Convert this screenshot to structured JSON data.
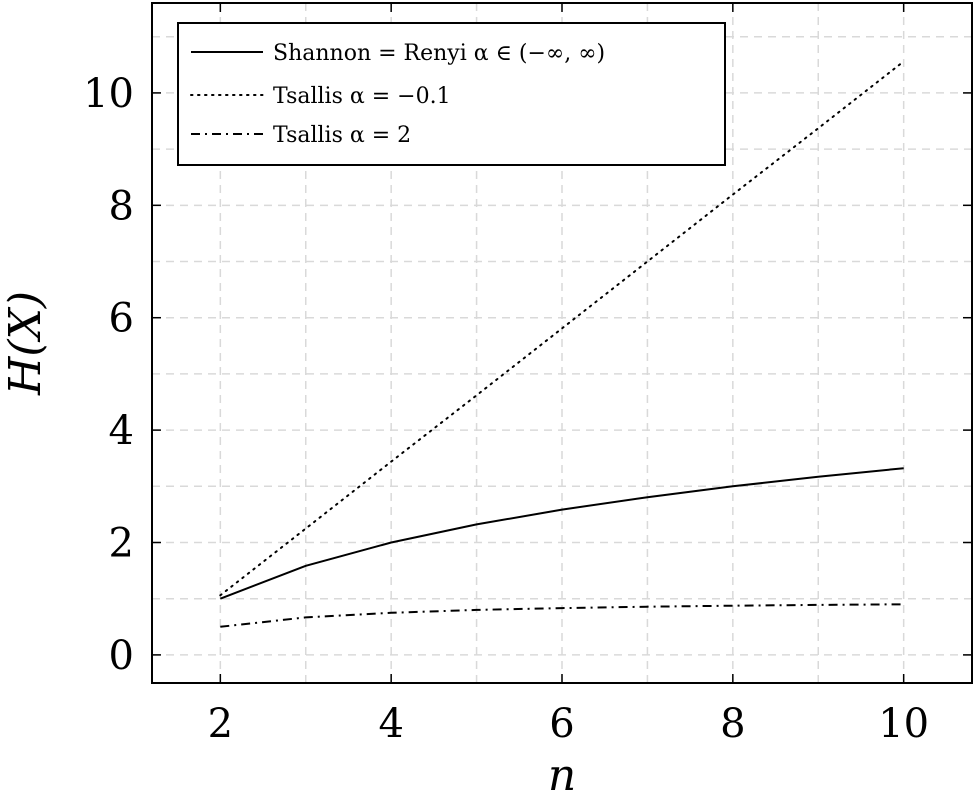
{
  "chart_data": {
    "type": "line",
    "xlabel": "n",
    "ylabel": "H(X)",
    "xlim": [
      1.2,
      10.8
    ],
    "ylim": [
      -0.5,
      11.6
    ],
    "xticks": [
      2,
      4,
      6,
      8,
      10
    ],
    "yticks": [
      0,
      2,
      4,
      6,
      8,
      10
    ],
    "grid": true,
    "legend_position": "top-left",
    "x": [
      2,
      3,
      4,
      5,
      6,
      7,
      8,
      9,
      10
    ],
    "series": [
      {
        "name": "Shannon = Renyi α ∈ (−∞, ∞)",
        "style": "solid",
        "values": [
          1.0,
          1.585,
          2.0,
          2.322,
          2.585,
          2.807,
          3.0,
          3.17,
          3.322
        ]
      },
      {
        "name": "Tsallis α = −0.1",
        "style": "dotted",
        "values": [
          1.06,
          2.25,
          3.44,
          4.62,
          5.81,
          7.0,
          8.19,
          9.37,
          10.56
        ]
      },
      {
        "name": "Tsallis α = 2",
        "style": "dashdot",
        "values": [
          0.5,
          0.667,
          0.75,
          0.8,
          0.833,
          0.857,
          0.875,
          0.889,
          0.9
        ]
      }
    ]
  }
}
